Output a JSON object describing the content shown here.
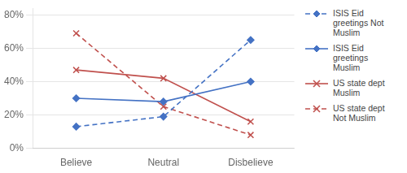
{
  "chart_data": {
    "type": "line",
    "categories": [
      "Believe",
      "Neutral",
      "Disbelieve"
    ],
    "series": [
      {
        "name": "ISIS Eid\ngreetings Not\nMuslim",
        "color": "#4472C4",
        "values": [
          13,
          19,
          65
        ],
        "marker": "diamond",
        "line_style": "dashed"
      },
      {
        "name": "ISIS Eid\ngreetings\nMuslim",
        "color": "#4472C4",
        "values": [
          30,
          28,
          40
        ],
        "marker": "diamond",
        "line_style": "solid"
      },
      {
        "name": "US state dept\nMuslim",
        "color": "#C0504D",
        "values": [
          47,
          42,
          16
        ],
        "marker": "x",
        "line_style": "solid"
      },
      {
        "name": "US state dept\nNot Muslim",
        "color": "#C0504D",
        "values": [
          69,
          25,
          8
        ],
        "marker": "x",
        "line_style": "dashed"
      }
    ],
    "ylim": [
      0,
      84
    ],
    "yticks": [
      {
        "value": 0,
        "label": "0%"
      },
      {
        "value": 20,
        "label": "20%"
      },
      {
        "value": 40,
        "label": "40%"
      },
      {
        "value": 60,
        "label": "60%"
      },
      {
        "value": 80,
        "label": "80%"
      }
    ],
    "grid": true,
    "legend": "right"
  }
}
